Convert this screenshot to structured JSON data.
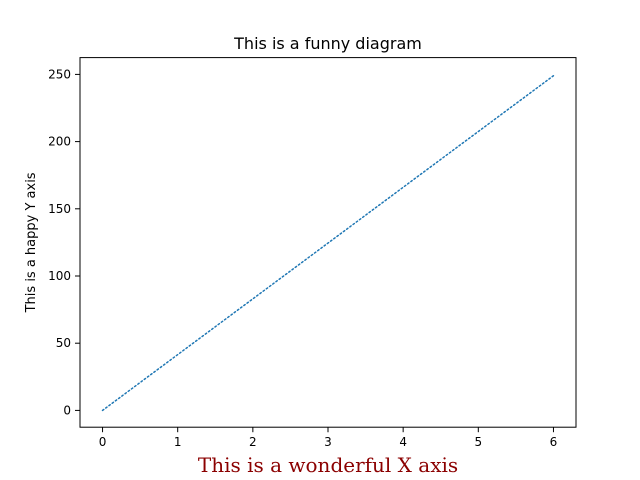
{
  "chart_data": {
    "type": "line",
    "title": "This is a funny diagram",
    "xlabel": "This is a wonderful X axis",
    "ylabel": "This is a happy Y axis",
    "xlim": [
      -0.3,
      6.3
    ],
    "ylim": [
      -12.5,
      262.5
    ],
    "xticks": [
      "0",
      "1",
      "2",
      "3",
      "4",
      "5",
      "6"
    ],
    "yticks": [
      "0",
      "50",
      "100",
      "150",
      "200",
      "250"
    ],
    "grid": false,
    "line_style": "dotted",
    "series": [
      {
        "color": "#1f77b4",
        "x": [
          0,
          1,
          2,
          3,
          4,
          5,
          6
        ],
        "y": [
          0,
          41.5,
          83,
          124.5,
          166,
          207.5,
          249
        ]
      }
    ],
    "colors": {
      "xlabel": "#8b0000",
      "line": "#1f77b4"
    }
  }
}
